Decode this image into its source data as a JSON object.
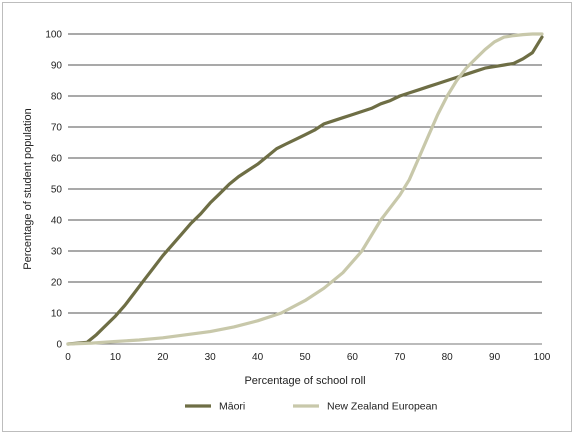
{
  "chart_data": {
    "type": "line",
    "xlabel": "Percentage of school roll",
    "ylabel": "Percentage of student population",
    "xlim": [
      0,
      100
    ],
    "ylim": [
      0,
      100
    ],
    "x_ticks": [
      0,
      10,
      20,
      30,
      40,
      50,
      60,
      70,
      80,
      90,
      100
    ],
    "y_ticks": [
      0,
      10,
      20,
      30,
      40,
      50,
      60,
      70,
      80,
      90,
      100
    ],
    "grid": "horizontal",
    "legend_position": "bottom",
    "series": [
      {
        "name": "Māori",
        "color": "#6e6e45",
        "x": [
          0,
          4,
          6,
          8,
          10,
          12,
          14,
          16,
          18,
          20,
          22,
          24,
          26,
          28,
          30,
          32,
          34,
          36,
          38,
          40,
          42,
          44,
          46,
          48,
          50,
          52,
          54,
          56,
          58,
          60,
          62,
          64,
          66,
          68,
          70,
          72,
          74,
          76,
          78,
          80,
          82,
          84,
          86,
          88,
          90,
          92,
          94,
          96,
          98,
          100
        ],
        "y": [
          0,
          0.5,
          3,
          6,
          9,
          12.5,
          16.5,
          20.5,
          24.5,
          28.5,
          32,
          35.5,
          39,
          42,
          45.5,
          48.5,
          51.5,
          54,
          56,
          58,
          60.5,
          63,
          64.5,
          66,
          67.5,
          69,
          71,
          72,
          73,
          74,
          75,
          76,
          77.5,
          78.5,
          80,
          81,
          82,
          83,
          84,
          85,
          86,
          87,
          88,
          89,
          89.5,
          90,
          90.5,
          92,
          94,
          99
        ]
      },
      {
        "name": "New Zealand European",
        "color": "#c8c8aa",
        "x": [
          0,
          5,
          10,
          15,
          20,
          25,
          30,
          35,
          40,
          45,
          50,
          54,
          58,
          62,
          66,
          70,
          72,
          74,
          76,
          78,
          80,
          82,
          84,
          86,
          88,
          90,
          92,
          94,
          96,
          98,
          100
        ],
        "y": [
          0,
          0.3,
          0.8,
          1.3,
          2,
          3,
          4,
          5.5,
          7.5,
          10,
          14,
          18,
          23,
          30,
          40,
          48,
          53,
          60,
          67,
          74,
          80,
          85,
          89,
          92,
          95,
          97.5,
          99,
          99.5,
          99.8,
          100,
          100
        ]
      }
    ]
  }
}
